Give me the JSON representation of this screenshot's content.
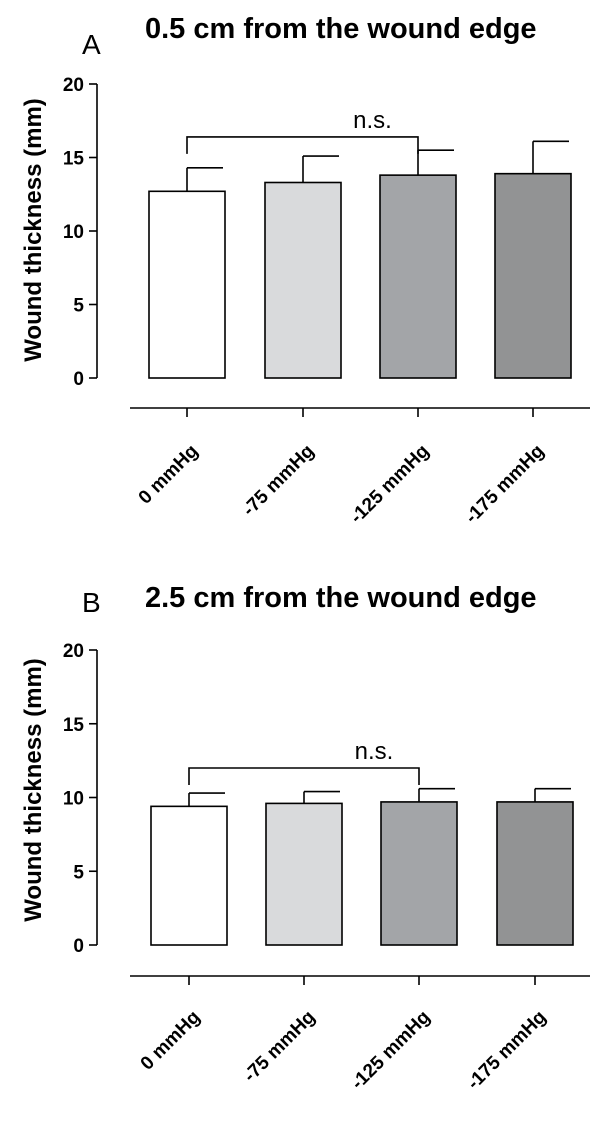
{
  "chart_data": [
    {
      "type": "bar",
      "panel": "A",
      "title": "0.5 cm from the wound edge",
      "xlabel": "",
      "ylabel": "Wound thickness (mm)",
      "ylim": [
        0,
        20
      ],
      "yticks": [
        0,
        5,
        10,
        15,
        20
      ],
      "categories": [
        "0 mmHg",
        "-75 mmHg",
        "-125 mmHg",
        "-175 mmHg"
      ],
      "values": [
        12.7,
        13.3,
        13.8,
        13.9
      ],
      "errors": [
        1.6,
        1.8,
        1.7,
        2.2
      ],
      "colors": [
        "#ffffff",
        "#d9dadc",
        "#a3a5a8",
        "#929394"
      ],
      "significance": {
        "from": 0,
        "to": 2,
        "label": "n.s.",
        "y": 16.4
      }
    },
    {
      "type": "bar",
      "panel": "B",
      "title": "2.5 cm from the wound edge",
      "xlabel": "",
      "ylabel": "Wound thickness (mm)",
      "ylim": [
        0,
        20
      ],
      "yticks": [
        0,
        5,
        10,
        15,
        20
      ],
      "categories": [
        "0 mmHg",
        "-75 mmHg",
        "-125 mmHg",
        "-175 mmHg"
      ],
      "values": [
        9.4,
        9.6,
        9.7,
        9.7
      ],
      "errors": [
        0.9,
        0.8,
        0.9,
        0.9
      ],
      "colors": [
        "#ffffff",
        "#d9dadc",
        "#a3a5a8",
        "#929394"
      ],
      "significance": {
        "from": 0,
        "to": 2,
        "label": "n.s.",
        "y": 12.0
      }
    }
  ]
}
